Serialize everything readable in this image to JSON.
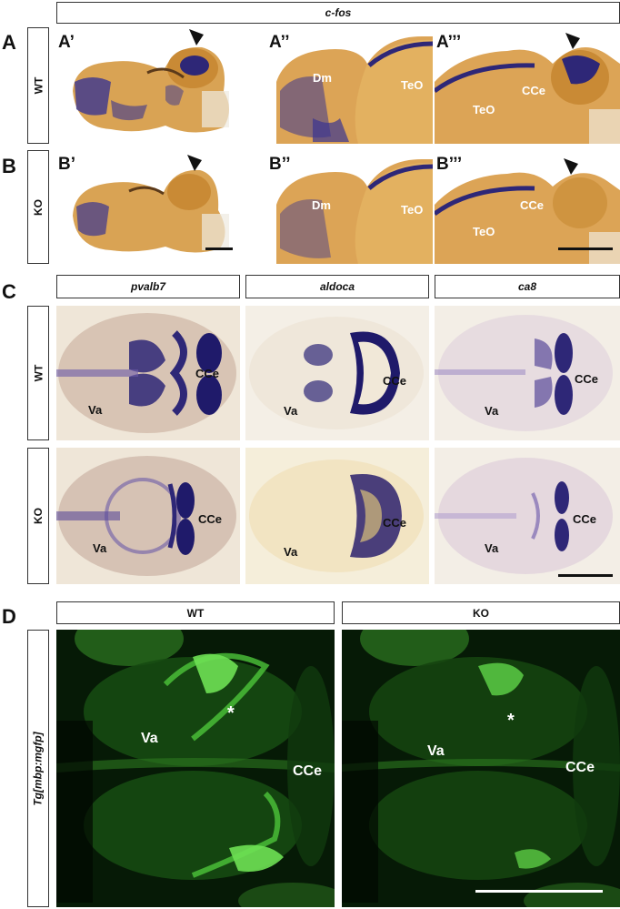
{
  "panels": {
    "A": "A",
    "B": "B",
    "C": "C",
    "D": "D"
  },
  "row_labels": {
    "wt": "WT",
    "ko": "KO",
    "tg": "Tg[mbp:mgfp]"
  },
  "headers": {
    "cfos": "c-fos",
    "pvalb7": "pvalb7",
    "aldoca": "aldoca",
    "ca8": "ca8",
    "d_wt": "WT",
    "d_ko": "KO"
  },
  "sub_labels": {
    "a1": "A’",
    "a2": "A’’",
    "a3": "A’’’",
    "b1": "B’",
    "b2": "B’’",
    "b3": "B’’’"
  },
  "regions": {
    "dm": "Dm",
    "teo": "TeO",
    "cce": "CCe",
    "va": "Va",
    "star": "*"
  }
}
